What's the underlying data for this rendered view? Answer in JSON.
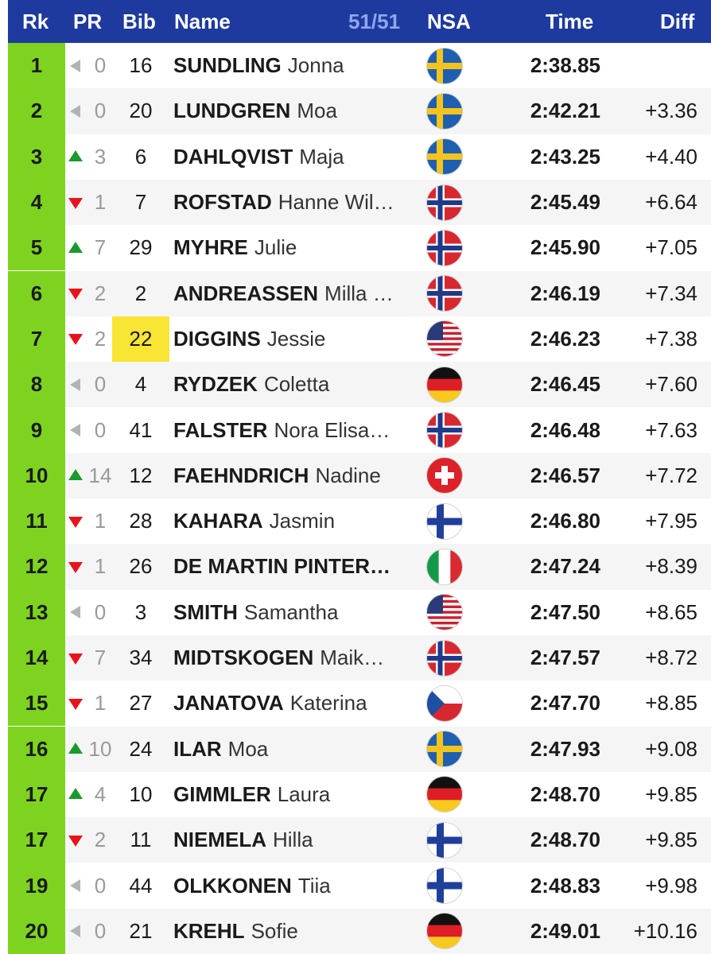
{
  "header": {
    "rk": "Rk",
    "pr": "PR",
    "bib": "Bib",
    "name": "Name",
    "count": "51/51",
    "nsa": "NSA",
    "time": "Time",
    "diff": "Diff"
  },
  "colors": {
    "header_bg": "#1e3a9e",
    "rank_bg": "#7ed321",
    "up": "#1a9a2a",
    "down": "#e8141c",
    "highlight": "#f8e534"
  },
  "rows": [
    {
      "rk": "1",
      "dir": "same",
      "pr": "0",
      "bib": "16",
      "last": "SUNDLING",
      "first": "Jonna",
      "nsa": "SWE",
      "time": "2:38.85",
      "diff": ""
    },
    {
      "rk": "2",
      "dir": "same",
      "pr": "0",
      "bib": "20",
      "last": "LUNDGREN",
      "first": "Moa",
      "nsa": "SWE",
      "time": "2:42.21",
      "diff": "+3.36"
    },
    {
      "rk": "3",
      "dir": "up",
      "pr": "3",
      "bib": "6",
      "last": "DAHLQVIST",
      "first": "Maja",
      "nsa": "SWE",
      "time": "2:43.25",
      "diff": "+4.40"
    },
    {
      "rk": "4",
      "dir": "down",
      "pr": "1",
      "bib": "7",
      "last": "ROFSTAD",
      "first": "Hanne Wil…",
      "nsa": "NOR",
      "time": "2:45.49",
      "diff": "+6.64"
    },
    {
      "rk": "5",
      "dir": "up",
      "pr": "7",
      "bib": "29",
      "last": "MYHRE",
      "first": "Julie",
      "nsa": "NOR",
      "time": "2:45.90",
      "diff": "+7.05"
    },
    {
      "rk": "6",
      "dir": "down",
      "pr": "2",
      "bib": "2",
      "last": "ANDREASSEN",
      "first": "Milla …",
      "nsa": "NOR",
      "time": "2:46.19",
      "diff": "+7.34"
    },
    {
      "rk": "7",
      "dir": "down",
      "pr": "2",
      "bib": "22",
      "highlight": true,
      "last": "DIGGINS",
      "first": "Jessie",
      "nsa": "USA",
      "time": "2:46.23",
      "diff": "+7.38"
    },
    {
      "rk": "8",
      "dir": "same",
      "pr": "0",
      "bib": "4",
      "last": "RYDZEK",
      "first": "Coletta",
      "nsa": "GER",
      "time": "2:46.45",
      "diff": "+7.60"
    },
    {
      "rk": "9",
      "dir": "same",
      "pr": "0",
      "bib": "41",
      "last": "FALSTER",
      "first": "Nora Elisa…",
      "nsa": "NOR",
      "time": "2:46.48",
      "diff": "+7.63"
    },
    {
      "rk": "10",
      "dir": "up",
      "pr": "14",
      "bib": "12",
      "last": "FAEHNDRICH",
      "first": "Nadine",
      "nsa": "SUI",
      "time": "2:46.57",
      "diff": "+7.72"
    },
    {
      "rk": "11",
      "dir": "down",
      "pr": "1",
      "bib": "28",
      "last": "KAHARA",
      "first": "Jasmin",
      "nsa": "FIN",
      "time": "2:46.80",
      "diff": "+7.95"
    },
    {
      "rk": "12",
      "dir": "down",
      "pr": "1",
      "bib": "26",
      "last": "DE MARTIN PINTER…",
      "first": "",
      "nsa": "ITA",
      "time": "2:47.24",
      "diff": "+8.39"
    },
    {
      "rk": "13",
      "dir": "same",
      "pr": "0",
      "bib": "3",
      "last": "SMITH",
      "first": "Samantha",
      "nsa": "USA",
      "time": "2:47.50",
      "diff": "+8.65"
    },
    {
      "rk": "14",
      "dir": "down",
      "pr": "7",
      "bib": "34",
      "last": "MIDTSKOGEN",
      "first": "Maik…",
      "nsa": "NOR",
      "time": "2:47.57",
      "diff": "+8.72"
    },
    {
      "rk": "15",
      "dir": "down",
      "pr": "1",
      "bib": "27",
      "last": "JANATOVA",
      "first": "Katerina",
      "nsa": "CZE",
      "time": "2:47.70",
      "diff": "+8.85"
    },
    {
      "rk": "16",
      "dir": "up",
      "pr": "10",
      "bib": "24",
      "last": "ILAR",
      "first": "Moa",
      "nsa": "SWE",
      "time": "2:47.93",
      "diff": "+9.08"
    },
    {
      "rk": "17",
      "dir": "up",
      "pr": "4",
      "bib": "10",
      "last": "GIMMLER",
      "first": "Laura",
      "nsa": "GER",
      "time": "2:48.70",
      "diff": "+9.85"
    },
    {
      "rk": "17",
      "dir": "down",
      "pr": "2",
      "bib": "11",
      "last": "NIEMELA",
      "first": "Hilla",
      "nsa": "FIN",
      "time": "2:48.70",
      "diff": "+9.85"
    },
    {
      "rk": "19",
      "dir": "same",
      "pr": "0",
      "bib": "44",
      "last": "OLKKONEN",
      "first": "Tiia",
      "nsa": "FIN",
      "time": "2:48.83",
      "diff": "+9.98"
    },
    {
      "rk": "20",
      "dir": "same",
      "pr": "0",
      "bib": "21",
      "last": "KREHL",
      "first": "Sofie",
      "nsa": "GER",
      "time": "2:49.01",
      "diff": "+10.16"
    }
  ]
}
